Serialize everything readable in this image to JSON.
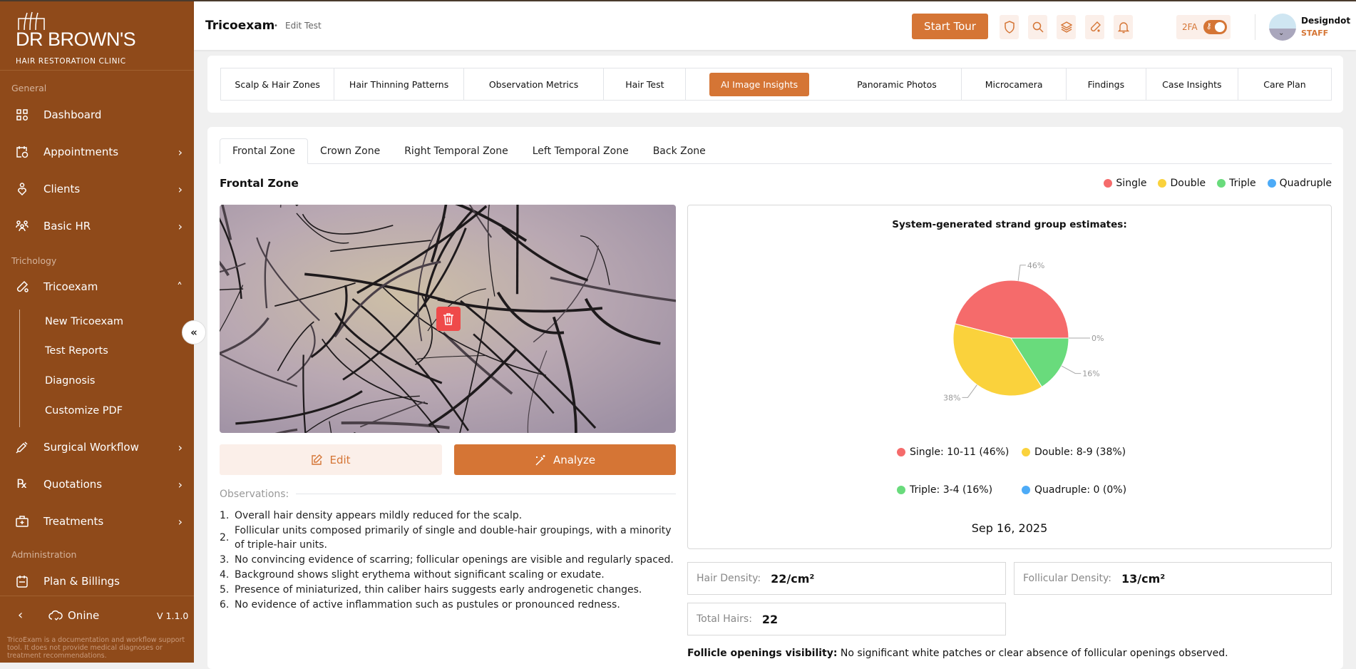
{
  "brand": {
    "logo_main": "DR BROWN'S",
    "logo_sub": "HAIR RESTORATION CLINIC"
  },
  "sidebar": {
    "sections": [
      "General",
      "Trichology",
      "Administration"
    ],
    "items": [
      {
        "label": "Dashboard",
        "icon": "grid-icon"
      },
      {
        "label": "Appointments",
        "icon": "calendar-clock-icon"
      },
      {
        "label": "Clients",
        "icon": "client-heart-icon"
      },
      {
        "label": "Basic HR",
        "icon": "users-icon"
      },
      {
        "label": "Tricoexam",
        "icon": "test-tube-icon"
      },
      {
        "label": "Surgical Workflow",
        "icon": "syringe-icon"
      },
      {
        "label": "Quotations",
        "icon": "prescription-icon"
      },
      {
        "label": "Treatments",
        "icon": "medkit-icon"
      },
      {
        "label": "Plan & Billings",
        "icon": "billing-icon"
      }
    ],
    "subitems": [
      "New Tricoexam",
      "Test Reports",
      "Diagnosis",
      "Customize PDF"
    ],
    "status": "Onine",
    "version": "V 1.1.0",
    "disclaimer": "TricoExam is a documentation and workflow support tool. It does not provide medical diagnoses or treatment recommendations."
  },
  "header": {
    "title": "Tricoexam",
    "crumb": "Edit Test",
    "start_tour": "Start Tour",
    "twofa": "2FA",
    "twofa_on": true,
    "user_name": "Designdot",
    "user_role": "STAFF"
  },
  "main_tabs": [
    "Scalp & Hair Zones",
    "Hair Thinning Patterns",
    "Observation Metrics",
    "Hair Test",
    "AI Image Insights",
    "Panoramic Photos",
    "Microcamera",
    "Findings",
    "Case Insights",
    "Care Plan"
  ],
  "active_main_tab": "AI Image Insights",
  "zone_tabs": [
    "Frontal Zone",
    "Crown Zone",
    "Right Temporal Zone",
    "Left Temporal Zone",
    "Back Zone"
  ],
  "active_zone": "Frontal Zone",
  "zone_heading": "Frontal Zone",
  "legend": [
    {
      "name": "Single",
      "color": "#f56b6b"
    },
    {
      "name": "Double",
      "color": "#fad23c"
    },
    {
      "name": "Triple",
      "color": "#69db7c"
    },
    {
      "name": "Quadruple",
      "color": "#4dabf7"
    }
  ],
  "buttons": {
    "edit": "Edit",
    "analyze": "Analyze"
  },
  "observations_label": "Observations:",
  "observations": [
    "Overall hair density appears mildly reduced for the scalp.",
    "Follicular units composed primarily of single and double-hair groupings, with a minority of triple-hair units.",
    "No convincing evidence of scarring; follicular openings are visible and regularly spaced.",
    "Background shows slight erythema without significant scaling or exudate.",
    "Presence of miniaturized, thin caliber hairs suggests early androgenetic changes.",
    "No evidence of active inflammation such as pustules or pronounced redness."
  ],
  "chart_data": {
    "type": "pie",
    "title": "System-generated strand group estimates:",
    "categories": [
      "Single",
      "Double",
      "Triple",
      "Quadruple"
    ],
    "values": [
      46,
      38,
      16,
      0
    ],
    "data_labels": [
      "46%",
      "38%",
      "16%",
      "0%"
    ],
    "colors": [
      "#f56b6b",
      "#fad23c",
      "#69db7c",
      "#4dabf7"
    ],
    "legend_entries": [
      "Single: 10-11 (46%)",
      "Double: 8-9 (38%)",
      "Triple: 3-4 (16%)",
      "Quadruple: 0 (0%)"
    ],
    "legend_placement": "bottom",
    "date": "Sep 16, 2025"
  },
  "metrics": [
    {
      "label": "Hair Density:",
      "value": "22/cm²"
    },
    {
      "label": "Follicular Density:",
      "value": "13/cm²"
    },
    {
      "label": "Total Hairs:",
      "value": "22"
    }
  ],
  "follicle": {
    "label": "Follicle openings visibility:",
    "text": " No significant white patches or clear absence of follicular openings observed."
  }
}
